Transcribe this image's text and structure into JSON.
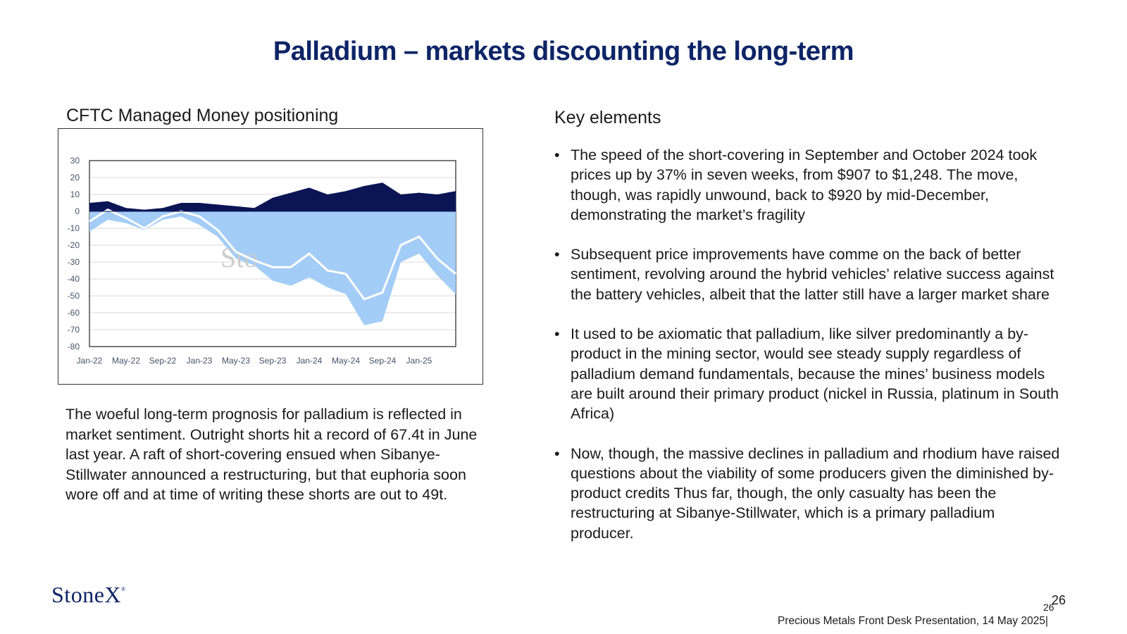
{
  "slide": {
    "title": "Palladium – markets discounting the long-term",
    "chart_heading": "CFTC Managed Money positioning",
    "left_paragraph": "The woeful long-term prognosis for palladium is reflected in market sentiment. Outright shorts hit a record of 67.4t in June last year.  A raft of short-covering ensued when Sibanye-Stillwater announced a restructuring, but that euphoria soon wore off and at time of writing these shorts are out to 49t.",
    "key_heading": "Key elements",
    "bullet_symbol": "•",
    "bullets": [
      "The speed of the short-covering in September and October 2024 took prices up by 37% in seven weeks, from $907 to $1,248.  The move, though, was  rapidly unwound, back to $920 by mid-December, demonstrating the market’s fragility",
      "Subsequent price improvements have comme on the back of better sentiment, revolving around the hybrid vehicles’ relative success against the battery vehicles, albeit that the latter still have a larger market share",
      "It used to be axiomatic that palladium, like silver predominantly a by-product in the mining sector, would see steady supply regardless of palladium demand fundamentals, because the mines’ business models are built around their primary product (nickel in Russia, platinum in South Africa)",
      "Now, though, the massive declines in palladium and rhodium have raised questions about the viability of some producers given the diminished by-product credits  Thus far, though, the only casualty has been the restructuring at Sibanye-Stillwater, which is a primary palladium producer."
    ],
    "logo_text": "StoneX",
    "logo_mark": "®",
    "page_number_a": "26",
    "page_number_b": "26",
    "footer": "Precious Metals Front Desk Presentation, 14 May 2025|"
  },
  "colors": {
    "title": "#0d2466",
    "longs": "#0b1555",
    "shorts": "#a3cdf7",
    "net": "#ffffff",
    "watermark": "#c8c8c8"
  },
  "chart_data": {
    "type": "area",
    "title": "",
    "xlabel": "",
    "ylabel": "",
    "ylim": [
      -80,
      30
    ],
    "yticks": [
      30,
      20,
      10,
      0,
      -10,
      -20,
      -30,
      -40,
      -50,
      -60,
      -70,
      -80
    ],
    "xtick_labels": [
      "Jan-22",
      "May-22",
      "Sep-22",
      "Jan-23",
      "May-23",
      "Sep-23",
      "Jan-24",
      "May-24",
      "Sep-24",
      "Jan-25"
    ],
    "xtick_dates": [
      "2022-01",
      "2022-05",
      "2022-09",
      "2023-01",
      "2023-05",
      "2023-09",
      "2024-01",
      "2024-05",
      "2024-09",
      "2025-01"
    ],
    "x_range": [
      "2022-01",
      "2025-05"
    ],
    "grid": "horizontal",
    "watermark": "Sto",
    "series": [
      {
        "role": "longs",
        "x": [
          "2022-01",
          "2022-03",
          "2022-05",
          "2022-07",
          "2022-09",
          "2022-11",
          "2023-01",
          "2023-03",
          "2023-05",
          "2023-07",
          "2023-09",
          "2023-11",
          "2024-01",
          "2024-03",
          "2024-05",
          "2024-07",
          "2024-09",
          "2024-11",
          "2025-01",
          "2025-03",
          "2025-05"
        ],
        "values": [
          5,
          6,
          2,
          1,
          2,
          5,
          5,
          4,
          3,
          2,
          8,
          11,
          14,
          10,
          12,
          15,
          17,
          10,
          11,
          10,
          12
        ]
      },
      {
        "role": "shorts",
        "x": [
          "2022-01",
          "2022-03",
          "2022-05",
          "2022-07",
          "2022-09",
          "2022-11",
          "2023-01",
          "2023-03",
          "2023-05",
          "2023-07",
          "2023-09",
          "2023-11",
          "2024-01",
          "2024-03",
          "2024-05",
          "2024-07",
          "2024-09",
          "2024-11",
          "2025-01",
          "2025-03",
          "2025-05"
        ],
        "values": [
          -12,
          -5,
          -7,
          -11,
          -5,
          -3,
          -8,
          -15,
          -28,
          -32,
          -41,
          -44,
          -39,
          -45,
          -49,
          -67.4,
          -65,
          -30,
          -25,
          -38,
          -49
        ]
      },
      {
        "role": "net",
        "x": [
          "2022-01",
          "2022-03",
          "2022-05",
          "2022-07",
          "2022-09",
          "2022-11",
          "2023-01",
          "2023-03",
          "2023-05",
          "2023-07",
          "2023-09",
          "2023-11",
          "2024-01",
          "2024-03",
          "2024-05",
          "2024-07",
          "2024-09",
          "2024-11",
          "2025-01",
          "2025-03",
          "2025-05"
        ],
        "values": [
          -6,
          1,
          -4,
          -10,
          -3,
          0,
          -3,
          -11,
          -24,
          -29,
          -33,
          -33,
          -25,
          -35,
          -37,
          -52,
          -48,
          -20,
          -15,
          -28,
          -37
        ]
      }
    ]
  }
}
